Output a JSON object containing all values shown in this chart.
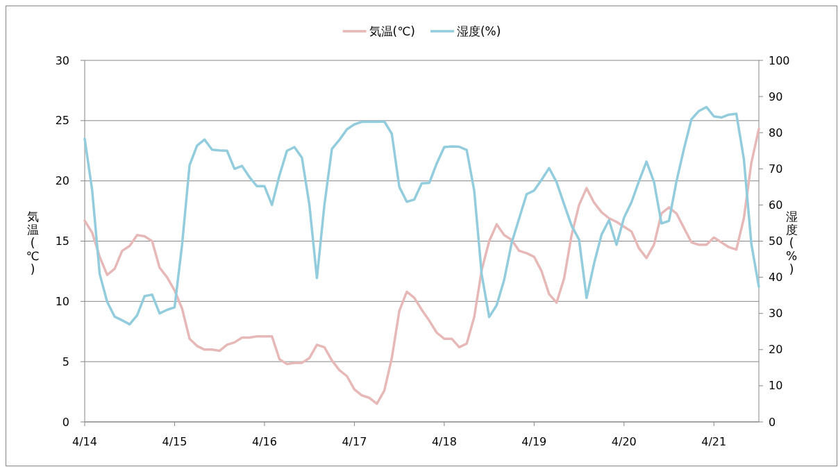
{
  "chart_data": {
    "type": "line",
    "ylabel": "気温(℃)",
    "y2label": "湿度(%)",
    "categories": [
      "4/14",
      null,
      null,
      null,
      null,
      null,
      null,
      null,
      null,
      null,
      null,
      null,
      "4/15",
      null,
      null,
      null,
      null,
      null,
      null,
      null,
      null,
      null,
      null,
      null,
      "4/16",
      null,
      null,
      null,
      null,
      null,
      null,
      null,
      null,
      null,
      null,
      null,
      "4/17",
      null,
      null,
      null,
      null,
      null,
      null,
      null,
      null,
      null,
      null,
      null,
      "4/18",
      null,
      null,
      null,
      null,
      null,
      null,
      null,
      null,
      null,
      null,
      null,
      "4/19",
      null,
      null,
      null,
      null,
      null,
      null,
      null,
      null,
      null,
      null,
      null,
      "4/20",
      null,
      null,
      null,
      null,
      null,
      null,
      null,
      null,
      null,
      null,
      null,
      "4/21",
      null,
      null,
      null,
      null,
      null,
      null
    ],
    "ylim": [
      0,
      30
    ],
    "yticks": [
      0,
      5,
      10,
      15,
      20,
      25,
      30
    ],
    "y2lim": [
      0,
      100
    ],
    "y2ticks": [
      0,
      10,
      20,
      30,
      40,
      50,
      60,
      70,
      80,
      90,
      100
    ],
    "grid": "y",
    "legend": "top",
    "marker": "none",
    "line_style": "solid",
    "series": [
      {
        "name": "気温(℃)",
        "color": "#e6b9b8",
        "values": [
          16.7,
          15.7,
          13.7,
          12.2,
          12.7,
          14.2,
          14.6,
          15.5,
          15.4,
          15.0,
          12.8,
          12.0,
          10.9,
          9.4,
          6.9,
          6.3,
          6.0,
          6.0,
          5.9,
          6.4,
          6.6,
          7.0,
          7.0,
          7.1,
          7.1,
          7.1,
          5.2,
          4.8,
          4.9,
          4.9,
          5.3,
          6.4,
          6.2,
          5.1,
          4.3,
          3.8,
          2.7,
          2.2,
          2.0,
          1.5,
          2.6,
          5.3,
          9.2,
          10.8,
          10.3,
          9.3,
          8.4,
          7.4,
          6.9,
          6.9,
          6.2,
          6.5,
          8.7,
          12.6,
          15.0,
          16.4,
          15.5,
          15.1,
          14.2,
          14.0,
          13.7,
          12.5,
          10.6,
          9.9,
          11.9,
          15.5,
          18.0,
          19.4,
          18.2,
          17.4,
          16.9,
          16.6,
          16.2,
          15.8,
          14.4,
          13.6,
          14.7,
          17.3,
          17.8,
          17.3,
          16.1,
          14.9,
          14.7,
          14.7,
          15.3,
          14.9,
          14.5,
          14.3,
          16.9,
          21.5,
          24.3
        ]
      },
      {
        "name": "湿度(%)",
        "color": "#93cddd",
        "axis": "y2",
        "values": [
          78.3,
          64.0,
          40.9,
          33.2,
          29.1,
          28.1,
          27.0,
          29.5,
          34.8,
          35.2,
          30.0,
          31.0,
          31.7,
          49.0,
          71.0,
          76.4,
          78.1,
          75.3,
          75.1,
          75.0,
          70.0,
          70.8,
          67.7,
          65.2,
          65.2,
          60.0,
          68.2,
          75.0,
          76.0,
          73.1,
          60.0,
          39.8,
          60.0,
          75.5,
          78.0,
          80.9,
          82.3,
          83.0,
          83.0,
          83.0,
          83.1,
          79.7,
          65.0,
          60.9,
          61.5,
          66.0,
          66.1,
          71.5,
          76.0,
          76.2,
          76.1,
          75.2,
          64.0,
          40.8,
          29.0,
          32.3,
          39.3,
          49.5,
          56.3,
          63.0,
          64.0,
          67.0,
          70.2,
          66.3,
          60.2,
          54.3,
          50.4,
          34.3,
          43.8,
          51.8,
          55.8,
          49.0,
          56.5,
          60.8,
          66.6,
          72.0,
          66.4,
          54.9,
          55.6,
          66.5,
          75.5,
          83.7,
          86.0,
          87.1,
          84.5,
          84.2,
          85.0,
          85.2,
          72.7,
          49.2,
          37.4
        ]
      }
    ]
  }
}
